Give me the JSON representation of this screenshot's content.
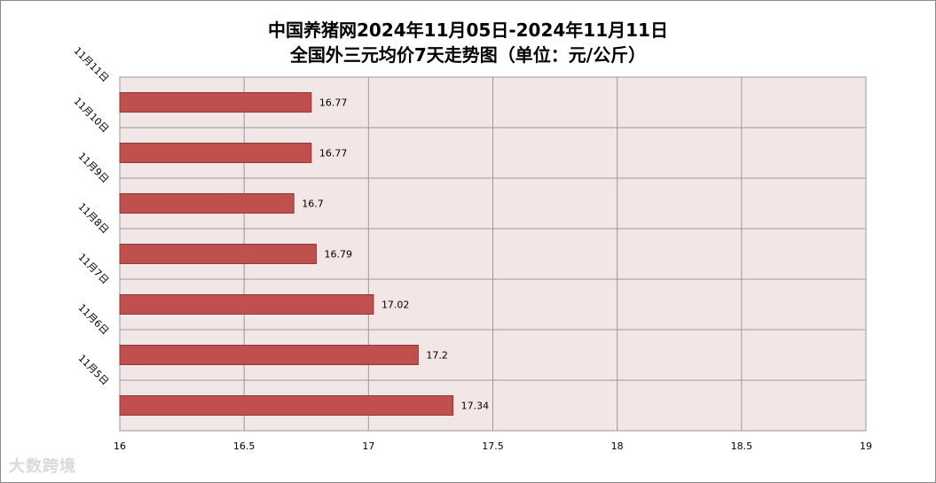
{
  "chart_data": {
    "type": "bar",
    "orientation": "horizontal",
    "title_line1": "中国养猪网2024年11月05日-2024年11月11日",
    "title_line2": "全国外三元均价7天走势图（单位：元/公斤）",
    "categories": [
      "11月11日",
      "11月10日",
      "11月9日",
      "11月8日",
      "11月7日",
      "11月6日",
      "11月5日"
    ],
    "values": [
      16.77,
      16.77,
      16.7,
      16.79,
      17.02,
      17.2,
      17.34
    ],
    "value_labels": [
      "16.77",
      "16.77",
      "16.7",
      "16.79",
      "17.02",
      "17.2",
      "17.34"
    ],
    "xlim": [
      16,
      19
    ],
    "x_ticks": [
      "16",
      "16.5",
      "17",
      "17.5",
      "18",
      "18.5",
      "19"
    ],
    "tick_values": [
      16,
      16.5,
      17,
      17.5,
      18,
      18.5,
      19
    ],
    "grid": true,
    "legend": "none",
    "colors": {
      "bar": "#c0504d",
      "bar_stroke": "#8c3a38",
      "plot_bg": "#f2e6e6",
      "grid": "#9a9a9a"
    }
  },
  "watermark": "大数跨境"
}
